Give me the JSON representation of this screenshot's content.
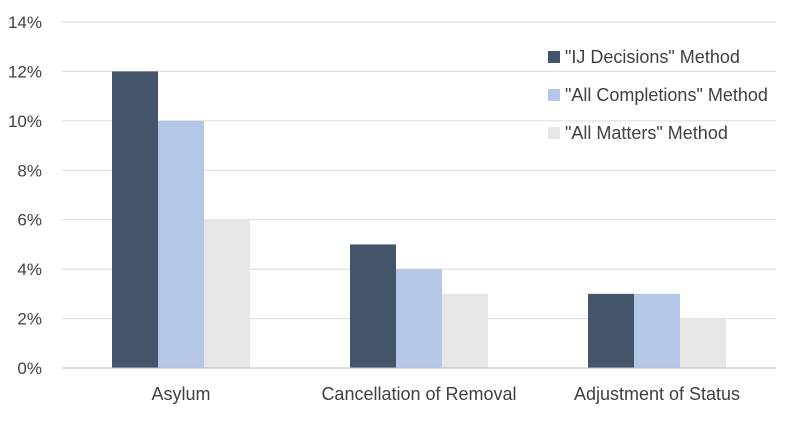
{
  "chart_data": {
    "type": "bar",
    "title": "",
    "xlabel": "",
    "ylabel": "",
    "categories": [
      "Asylum",
      "Cancellation of Removal",
      "Adjustment of Status"
    ],
    "series": [
      {
        "name": "\"IJ Decisions\" Method",
        "values": [
          12,
          5,
          3
        ],
        "color": "#44546a"
      },
      {
        "name": "\"All Completions\" Method",
        "values": [
          10,
          4,
          3
        ],
        "color": "#b4c7e7"
      },
      {
        "name": "\"All Matters\" Method",
        "values": [
          6,
          3,
          2
        ],
        "color": "#e7e6e6"
      }
    ],
    "ylim": [
      0,
      14
    ],
    "yticks": [
      0,
      2,
      4,
      6,
      8,
      10,
      12,
      14
    ],
    "ytick_labels": [
      "0%",
      "2%",
      "4%",
      "6%",
      "8%",
      "10%",
      "12%",
      "14%"
    ],
    "grid": true,
    "legend_position": "top-right"
  }
}
